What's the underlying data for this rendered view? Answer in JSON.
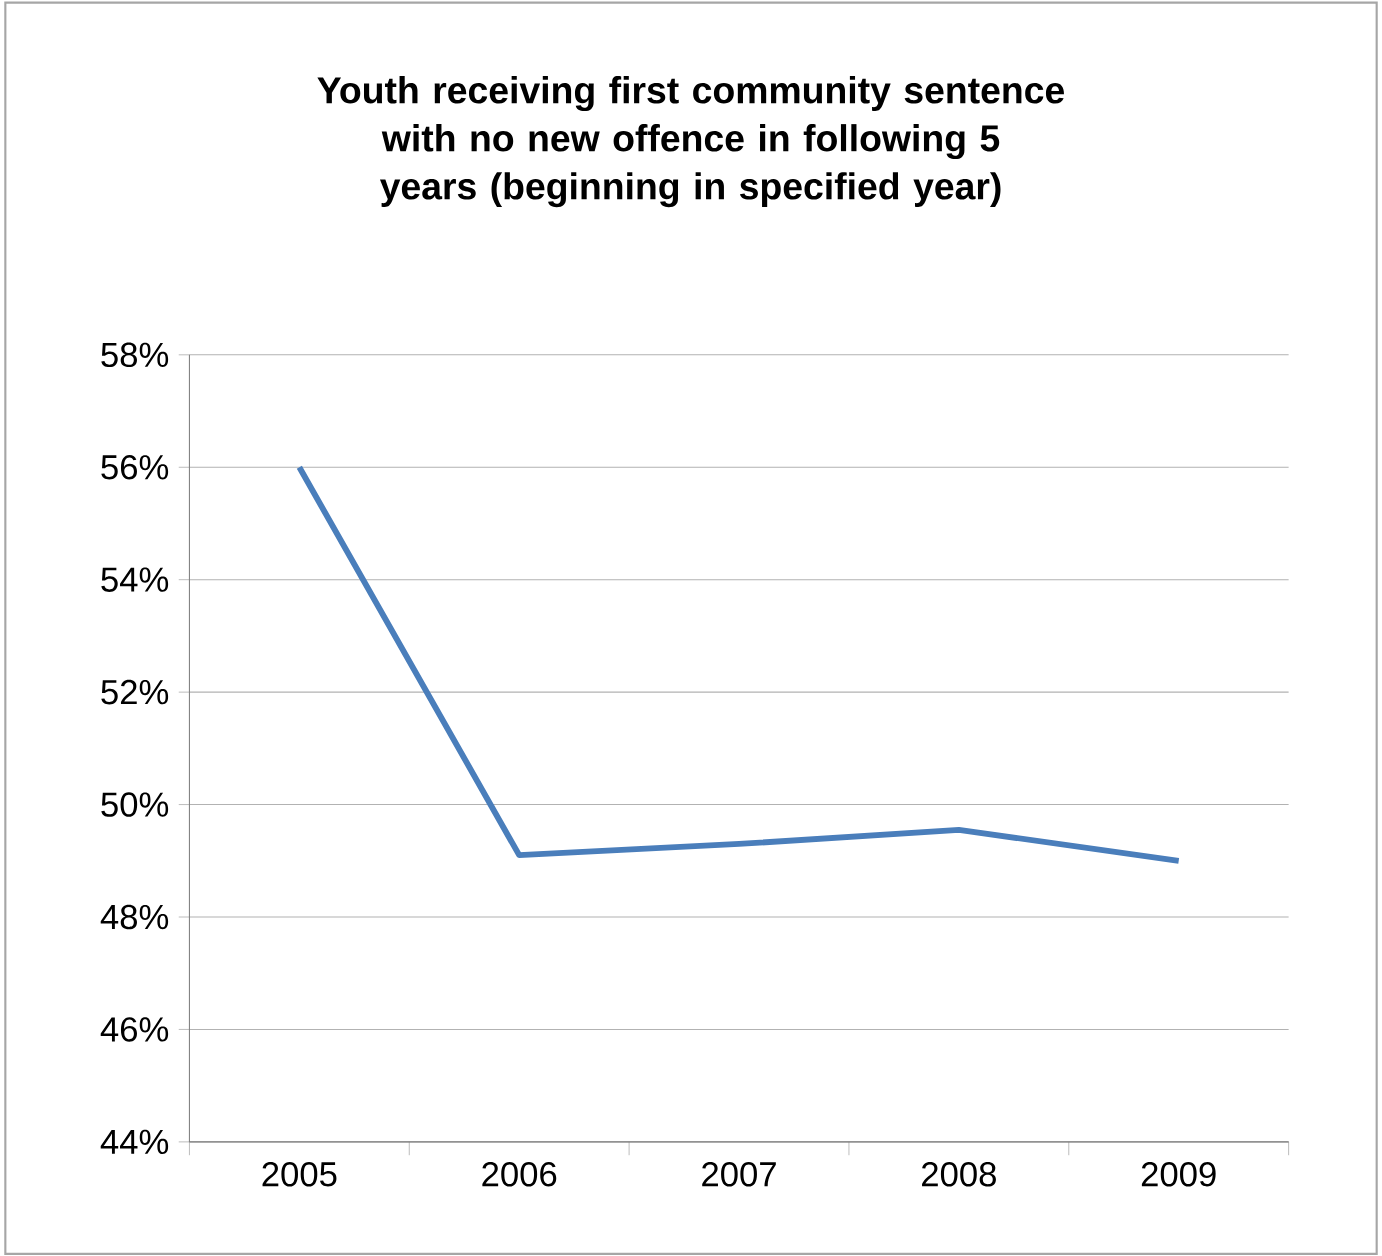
{
  "chart_data": {
    "type": "line",
    "title": "Youth receiving first community sentence with no new offence in following 5 years (beginning in specified year)",
    "categories": [
      "2005",
      "2006",
      "2007",
      "2008",
      "2009"
    ],
    "series": [
      {
        "color": "#4a7ebb",
        "values": [
          56,
          49.1,
          49.3,
          49.55,
          49.0
        ]
      }
    ],
    "ylim": [
      44,
      58
    ],
    "yticks": [
      {
        "value": 44,
        "label": "44%"
      },
      {
        "value": 46,
        "label": "46%"
      },
      {
        "value": 48,
        "label": "48%"
      },
      {
        "value": 50,
        "label": "50%"
      },
      {
        "value": 52,
        "label": "52%"
      },
      {
        "value": 54,
        "label": "54%"
      },
      {
        "value": 56,
        "label": "56%"
      },
      {
        "value": 58,
        "label": "58%"
      }
    ],
    "grid": "y",
    "marker": "none",
    "line_style": "solid"
  }
}
